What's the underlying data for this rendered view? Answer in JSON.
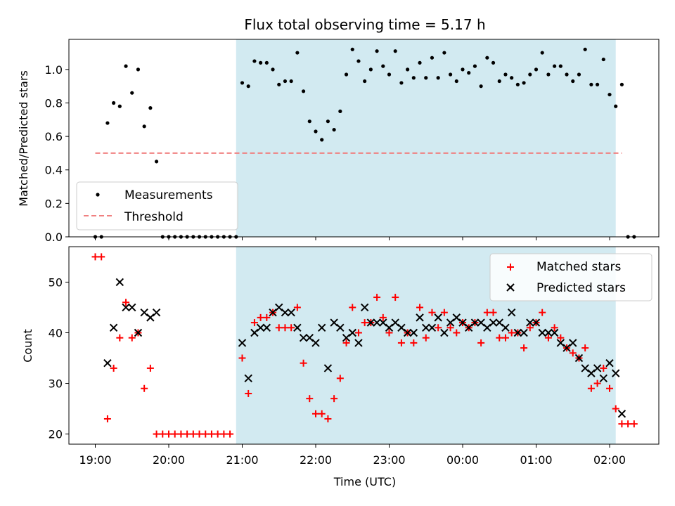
{
  "chart_data": [
    {
      "type": "scatter",
      "title": "Flux total observing time = 5.17 h",
      "xlabel": "",
      "ylabel": "Matched/Predicted stars",
      "ylim": [
        0,
        1.18
      ],
      "yticks": [
        "0.0",
        "0.2",
        "0.4",
        "0.6",
        "0.8",
        "1.0"
      ],
      "legend_position": "lower-left",
      "shaded_span": [
        "20:55",
        "02:05"
      ],
      "shade_color": "#add8e6",
      "threshold": {
        "name": "Threshold",
        "value": 0.5,
        "x_range": [
          "19:00",
          "02:10"
        ],
        "color": "#f08080"
      },
      "series": [
        {
          "name": "Measurements",
          "color": "#000000",
          "points": [
            [
              "19:00",
              0
            ],
            [
              "19:05",
              0
            ],
            [
              "19:10",
              0.68
            ],
            [
              "19:15",
              0.8
            ],
            [
              "19:20",
              0.78
            ],
            [
              "19:25",
              1.02
            ],
            [
              "19:30",
              0.86
            ],
            [
              "19:35",
              1.0
            ],
            [
              "19:40",
              0.66
            ],
            [
              "19:45",
              0.77
            ],
            [
              "19:50",
              0.45
            ],
            [
              "19:55",
              0
            ],
            [
              "20:00",
              0
            ],
            [
              "20:05",
              0
            ],
            [
              "20:10",
              0
            ],
            [
              "20:15",
              0
            ],
            [
              "20:20",
              0
            ],
            [
              "20:25",
              0
            ],
            [
              "20:30",
              0
            ],
            [
              "20:35",
              0
            ],
            [
              "20:40",
              0
            ],
            [
              "20:45",
              0
            ],
            [
              "20:50",
              0
            ],
            [
              "20:55",
              0
            ],
            [
              "21:00",
              0.92
            ],
            [
              "21:05",
              0.9
            ],
            [
              "21:10",
              1.05
            ],
            [
              "21:15",
              1.04
            ],
            [
              "21:20",
              1.04
            ],
            [
              "21:25",
              1.0
            ],
            [
              "21:30",
              0.91
            ],
            [
              "21:35",
              0.93
            ],
            [
              "21:40",
              0.93
            ],
            [
              "21:45",
              1.1
            ],
            [
              "21:50",
              0.87
            ],
            [
              "21:55",
              0.69
            ],
            [
              "22:00",
              0.63
            ],
            [
              "22:05",
              0.58
            ],
            [
              "22:10",
              0.69
            ],
            [
              "22:15",
              0.64
            ],
            [
              "22:20",
              0.75
            ],
            [
              "22:25",
              0.97
            ],
            [
              "22:30",
              1.12
            ],
            [
              "22:35",
              1.05
            ],
            [
              "22:40",
              0.93
            ],
            [
              "22:45",
              1.0
            ],
            [
              "22:50",
              1.11
            ],
            [
              "22:55",
              1.02
            ],
            [
              "23:00",
              0.97
            ],
            [
              "23:05",
              1.11
            ],
            [
              "23:10",
              0.92
            ],
            [
              "23:15",
              1.0
            ],
            [
              "23:20",
              0.95
            ],
            [
              "23:25",
              1.04
            ],
            [
              "23:30",
              0.95
            ],
            [
              "23:35",
              1.07
            ],
            [
              "23:40",
              0.95
            ],
            [
              "23:45",
              1.1
            ],
            [
              "23:50",
              0.97
            ],
            [
              "23:55",
              0.93
            ],
            [
              "00:00",
              1.0
            ],
            [
              "00:05",
              0.98
            ],
            [
              "00:10",
              1.02
            ],
            [
              "00:15",
              0.9
            ],
            [
              "00:20",
              1.07
            ],
            [
              "00:25",
              1.04
            ],
            [
              "00:30",
              0.93
            ],
            [
              "00:35",
              0.97
            ],
            [
              "00:40",
              0.95
            ],
            [
              "00:45",
              0.91
            ],
            [
              "00:50",
              0.92
            ],
            [
              "00:55",
              0.97
            ],
            [
              "01:00",
              1.0
            ],
            [
              "01:05",
              1.1
            ],
            [
              "01:10",
              0.97
            ],
            [
              "01:15",
              1.02
            ],
            [
              "01:20",
              1.02
            ],
            [
              "01:25",
              0.97
            ],
            [
              "01:30",
              0.93
            ],
            [
              "01:35",
              0.97
            ],
            [
              "01:40",
              1.12
            ],
            [
              "01:45",
              0.91
            ],
            [
              "01:50",
              0.91
            ],
            [
              "01:55",
              1.06
            ],
            [
              "02:00",
              0.85
            ],
            [
              "02:05",
              0.78
            ],
            [
              "02:10",
              0.91
            ],
            [
              "02:15",
              0
            ],
            [
              "02:20",
              0
            ]
          ]
        }
      ]
    },
    {
      "type": "scatter",
      "title": "",
      "xlabel": "Time (UTC)",
      "ylabel": "Count",
      "ylim": [
        18,
        57
      ],
      "yticks": [
        "20",
        "30",
        "40",
        "50"
      ],
      "xticks": [
        "19:00",
        "20:00",
        "21:00",
        "22:00",
        "23:00",
        "00:00",
        "01:00",
        "02:00"
      ],
      "legend_position": "top-right",
      "shaded_span": [
        "20:55",
        "02:05"
      ],
      "shade_color": "#add8e6",
      "series": [
        {
          "name": "Matched stars",
          "marker": "plus",
          "color": "#ff0000",
          "points": [
            [
              "19:00",
              55
            ],
            [
              "19:05",
              55
            ],
            [
              "19:10",
              23
            ],
            [
              "19:15",
              33
            ],
            [
              "19:20",
              39
            ],
            [
              "19:25",
              46
            ],
            [
              "19:30",
              39
            ],
            [
              "19:35",
              40
            ],
            [
              "19:40",
              29
            ],
            [
              "19:45",
              33
            ],
            [
              "19:50",
              20
            ],
            [
              "19:55",
              20
            ],
            [
              "20:00",
              20
            ],
            [
              "20:05",
              20
            ],
            [
              "20:10",
              20
            ],
            [
              "20:15",
              20
            ],
            [
              "20:20",
              20
            ],
            [
              "20:25",
              20
            ],
            [
              "20:30",
              20
            ],
            [
              "20:35",
              20
            ],
            [
              "20:40",
              20
            ],
            [
              "20:45",
              20
            ],
            [
              "20:50",
              20
            ],
            [
              "21:00",
              35
            ],
            [
              "21:05",
              28
            ],
            [
              "21:10",
              42
            ],
            [
              "21:15",
              43
            ],
            [
              "21:20",
              43
            ],
            [
              "21:25",
              44
            ],
            [
              "21:30",
              41
            ],
            [
              "21:35",
              41
            ],
            [
              "21:40",
              41
            ],
            [
              "21:45",
              45
            ],
            [
              "21:50",
              34
            ],
            [
              "21:55",
              27
            ],
            [
              "22:00",
              24
            ],
            [
              "22:05",
              24
            ],
            [
              "22:10",
              23
            ],
            [
              "22:15",
              27
            ],
            [
              "22:20",
              31
            ],
            [
              "22:25",
              38
            ],
            [
              "22:30",
              45
            ],
            [
              "22:35",
              40
            ],
            [
              "22:40",
              42
            ],
            [
              "22:45",
              42
            ],
            [
              "22:50",
              47
            ],
            [
              "22:55",
              43
            ],
            [
              "23:00",
              40
            ],
            [
              "23:05",
              47
            ],
            [
              "23:10",
              38
            ],
            [
              "23:15",
              40
            ],
            [
              "23:20",
              38
            ],
            [
              "23:25",
              45
            ],
            [
              "23:30",
              39
            ],
            [
              "23:35",
              44
            ],
            [
              "23:40",
              41
            ],
            [
              "23:45",
              44
            ],
            [
              "23:50",
              41
            ],
            [
              "23:55",
              40
            ],
            [
              "00:00",
              42
            ],
            [
              "00:05",
              41
            ],
            [
              "00:10",
              42
            ],
            [
              "00:15",
              38
            ],
            [
              "00:20",
              44
            ],
            [
              "00:25",
              44
            ],
            [
              "00:30",
              39
            ],
            [
              "00:35",
              39
            ],
            [
              "00:40",
              40
            ],
            [
              "00:45",
              40
            ],
            [
              "00:50",
              37
            ],
            [
              "00:55",
              41
            ],
            [
              "01:00",
              42
            ],
            [
              "01:05",
              44
            ],
            [
              "01:10",
              39
            ],
            [
              "01:15",
              41
            ],
            [
              "01:20",
              39
            ],
            [
              "01:25",
              37
            ],
            [
              "01:30",
              36
            ],
            [
              "01:35",
              35
            ],
            [
              "01:40",
              37
            ],
            [
              "01:45",
              29
            ],
            [
              "01:50",
              30
            ],
            [
              "01:55",
              33
            ],
            [
              "02:00",
              29
            ],
            [
              "02:05",
              25
            ],
            [
              "02:10",
              22
            ],
            [
              "02:15",
              22
            ],
            [
              "02:20",
              22
            ]
          ]
        },
        {
          "name": "Predicted stars",
          "marker": "x",
          "color": "#000000",
          "points": [
            [
              "19:10",
              34
            ],
            [
              "19:15",
              41
            ],
            [
              "19:20",
              50
            ],
            [
              "19:25",
              45
            ],
            [
              "19:30",
              45
            ],
            [
              "19:35",
              40
            ],
            [
              "19:40",
              44
            ],
            [
              "19:45",
              43
            ],
            [
              "19:50",
              44
            ],
            [
              "21:00",
              38
            ],
            [
              "21:05",
              31
            ],
            [
              "21:10",
              40
            ],
            [
              "21:15",
              41
            ],
            [
              "21:20",
              41
            ],
            [
              "21:25",
              44
            ],
            [
              "21:30",
              45
            ],
            [
              "21:35",
              44
            ],
            [
              "21:40",
              44
            ],
            [
              "21:45",
              41
            ],
            [
              "21:50",
              39
            ],
            [
              "21:55",
              39
            ],
            [
              "22:00",
              38
            ],
            [
              "22:05",
              41
            ],
            [
              "22:10",
              33
            ],
            [
              "22:15",
              42
            ],
            [
              "22:20",
              41
            ],
            [
              "22:25",
              39
            ],
            [
              "22:30",
              40
            ],
            [
              "22:35",
              38
            ],
            [
              "22:40",
              45
            ],
            [
              "22:45",
              42
            ],
            [
              "22:50",
              42
            ],
            [
              "22:55",
              42
            ],
            [
              "23:00",
              41
            ],
            [
              "23:05",
              42
            ],
            [
              "23:10",
              41
            ],
            [
              "23:15",
              40
            ],
            [
              "23:20",
              40
            ],
            [
              "23:25",
              43
            ],
            [
              "23:30",
              41
            ],
            [
              "23:35",
              41
            ],
            [
              "23:40",
              43
            ],
            [
              "23:45",
              40
            ],
            [
              "23:50",
              42
            ],
            [
              "23:55",
              43
            ],
            [
              "00:00",
              42
            ],
            [
              "00:05",
              41
            ],
            [
              "00:10",
              42
            ],
            [
              "00:15",
              42
            ],
            [
              "00:20",
              41
            ],
            [
              "00:25",
              42
            ],
            [
              "00:30",
              42
            ],
            [
              "00:35",
              41
            ],
            [
              "00:40",
              44
            ],
            [
              "00:45",
              40
            ],
            [
              "00:50",
              40
            ],
            [
              "00:55",
              42
            ],
            [
              "01:00",
              42
            ],
            [
              "01:05",
              40
            ],
            [
              "01:10",
              40
            ],
            [
              "01:15",
              40
            ],
            [
              "01:20",
              38
            ],
            [
              "01:25",
              37
            ],
            [
              "01:30",
              38
            ],
            [
              "01:35",
              35
            ],
            [
              "01:40",
              33
            ],
            [
              "01:45",
              32
            ],
            [
              "01:50",
              33
            ],
            [
              "01:55",
              31
            ],
            [
              "02:00",
              34
            ],
            [
              "02:05",
              32
            ],
            [
              "02:10",
              24
            ]
          ]
        }
      ]
    }
  ]
}
